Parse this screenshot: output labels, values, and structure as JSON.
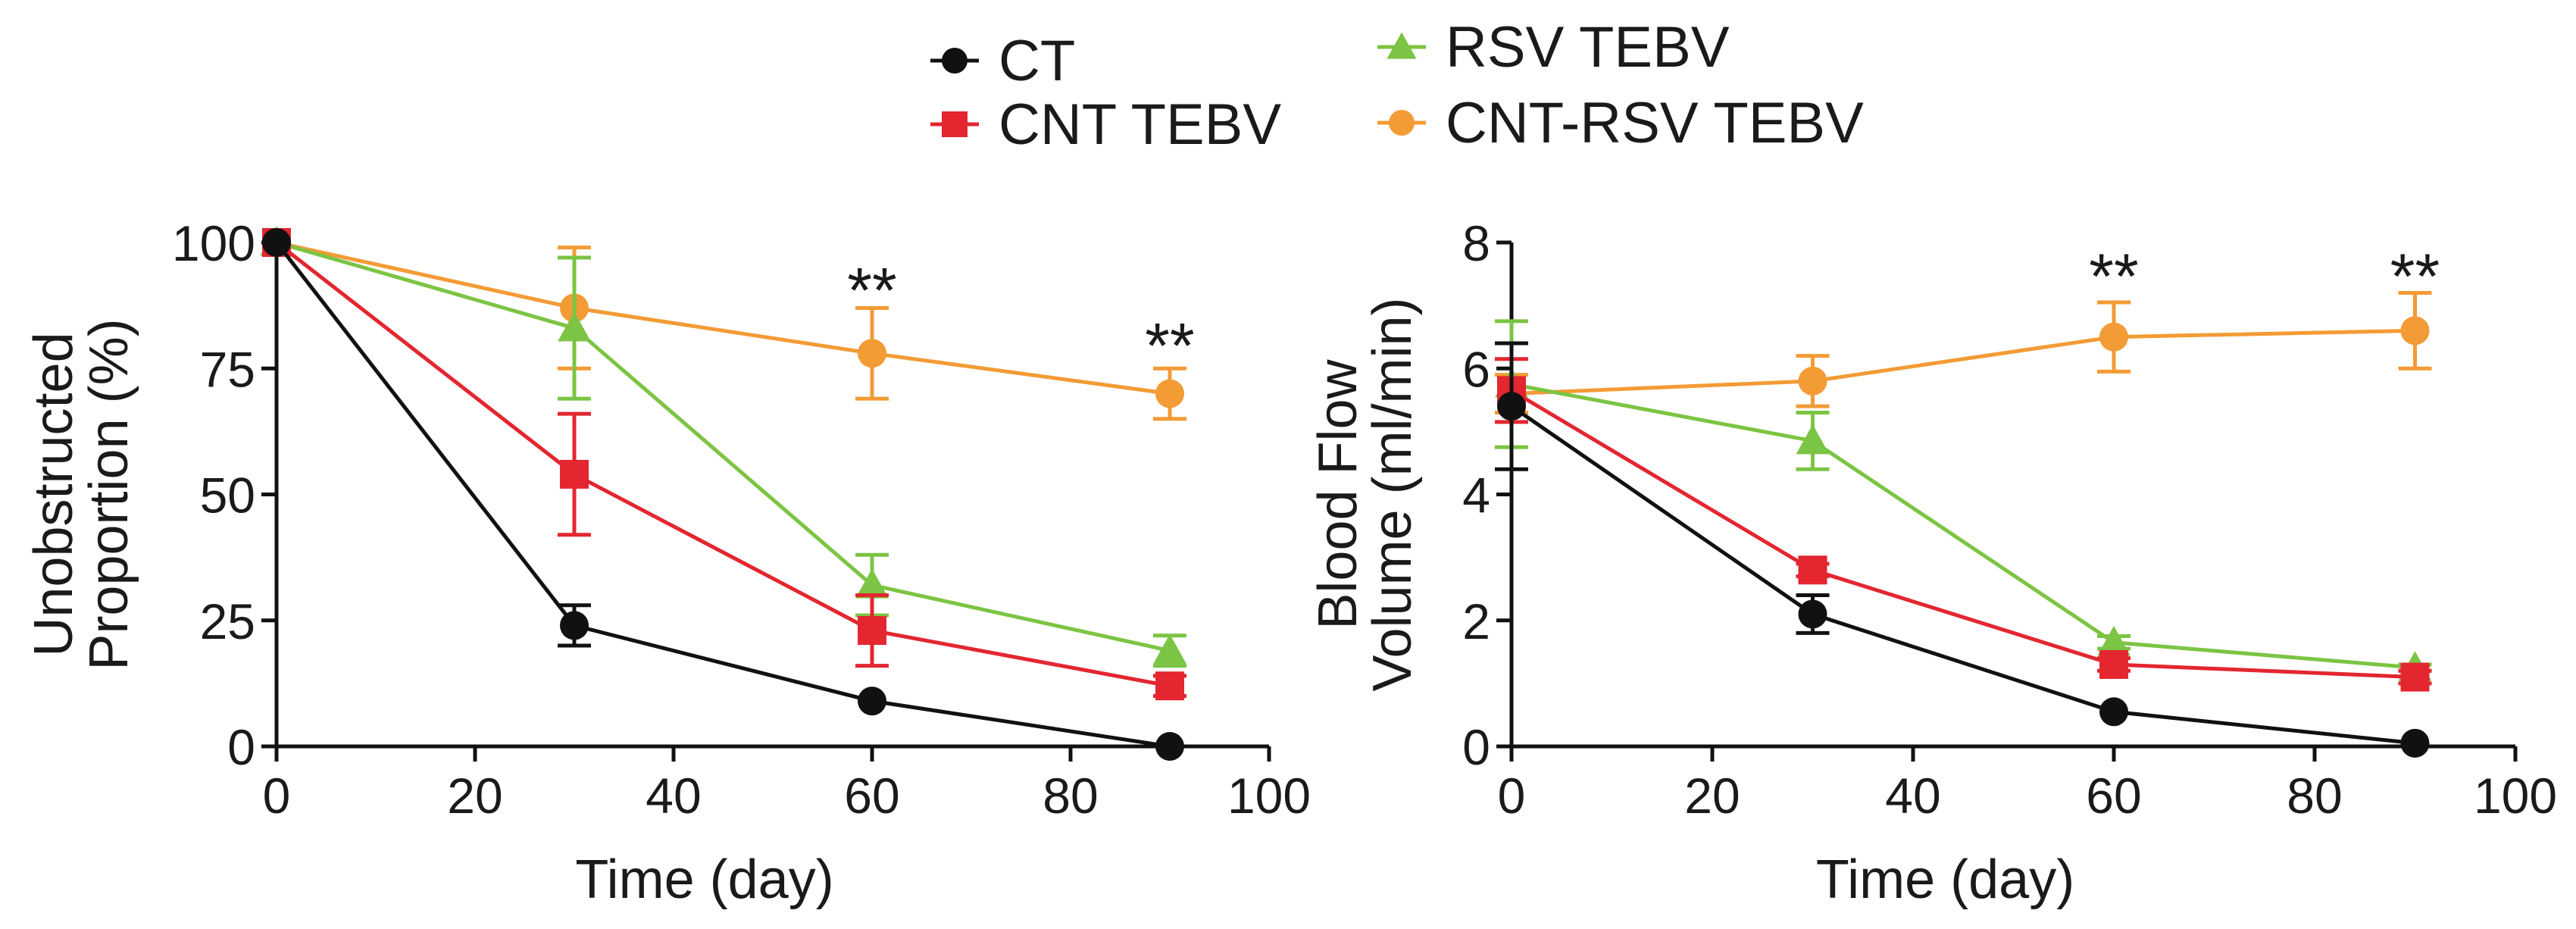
{
  "legend": [
    {
      "label": "CT",
      "color": "#111111",
      "marker": "circle"
    },
    {
      "label": "CNT TEBV",
      "color": "#e32630",
      "marker": "square"
    },
    {
      "label": "RSV TEBV",
      "color": "#7cc443",
      "marker": "triangle"
    },
    {
      "label": "CNT-RSV TEBV",
      "color": "#f39b35",
      "marker": "circle"
    }
  ],
  "chart_data": [
    {
      "type": "line",
      "title": "",
      "xlabel": "Time (day)",
      "ylabel": [
        "Unobstructed",
        "Proportion (%)"
      ],
      "xlim": [
        0,
        100
      ],
      "ylim": [
        0,
        100
      ],
      "xticks": [
        0,
        20,
        40,
        60,
        80,
        100
      ],
      "yticks": [
        0,
        25,
        50,
        75,
        100
      ],
      "x": [
        0,
        30,
        60,
        90
      ],
      "series": [
        {
          "name": "CT",
          "values": [
            100,
            24,
            9,
            0
          ],
          "errors": [
            0,
            4,
            0,
            0
          ]
        },
        {
          "name": "CNT TEBV",
          "values": [
            100,
            54,
            23,
            12
          ],
          "errors": [
            0,
            12,
            7,
            2
          ]
        },
        {
          "name": "RSV TEBV",
          "values": [
            100,
            83,
            32,
            19
          ],
          "errors": [
            0,
            14,
            6,
            3
          ]
        },
        {
          "name": "CNT-RSV TEBV",
          "values": [
            100,
            87,
            78,
            70
          ],
          "errors": [
            0,
            12,
            9,
            5
          ]
        }
      ],
      "annotations": [
        {
          "x": 60,
          "y": 91,
          "text": "**"
        },
        {
          "x": 90,
          "y": 80,
          "text": "**"
        }
      ]
    },
    {
      "type": "line",
      "title": "",
      "xlabel": "Time (day)",
      "ylabel": [
        "Blood Flow",
        "Volume (ml/min)"
      ],
      "xlim": [
        0,
        100
      ],
      "ylim": [
        0,
        8
      ],
      "xticks": [
        0,
        20,
        40,
        60,
        80,
        100
      ],
      "yticks": [
        0,
        2,
        4,
        6,
        8
      ],
      "x": [
        0,
        30,
        60,
        90
      ],
      "series": [
        {
          "name": "CT",
          "values": [
            5.4,
            2.1,
            0.55,
            0.05
          ],
          "errors": [
            1.0,
            0.3,
            0,
            0
          ]
        },
        {
          "name": "CNT TEBV",
          "values": [
            5.65,
            2.8,
            1.3,
            1.1
          ],
          "errors": [
            0.5,
            0.1,
            0.1,
            0.1
          ]
        },
        {
          "name": "RSV TEBV",
          "values": [
            5.75,
            4.85,
            1.65,
            1.25
          ],
          "errors": [
            1.0,
            0.45,
            0.1,
            0.05
          ]
        },
        {
          "name": "CNT-RSV TEBV",
          "values": [
            5.6,
            5.8,
            6.5,
            6.6
          ],
          "errors": [
            0.3,
            0.4,
            0.55,
            0.6
          ]
        }
      ],
      "annotations": [
        {
          "x": 60,
          "y": 7.5,
          "text": "**"
        },
        {
          "x": 90,
          "y": 7.5,
          "text": "**"
        }
      ]
    }
  ]
}
